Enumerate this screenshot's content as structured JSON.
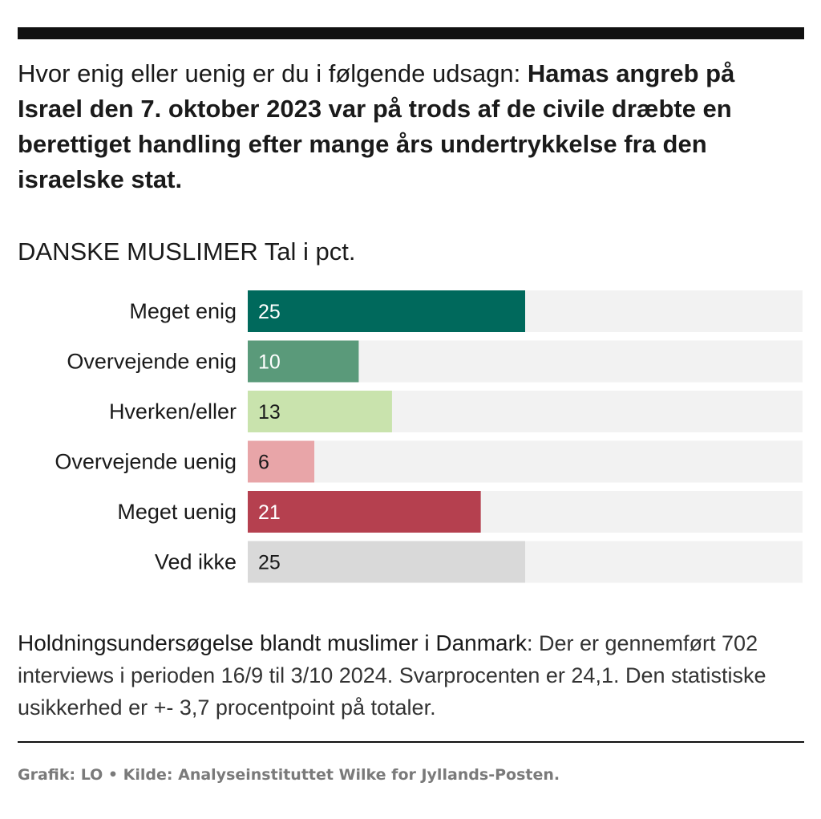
{
  "question": {
    "lead": "Hvor enig eller uenig er du i følgende udsagn: ",
    "statement": "Hamas angreb på Israel den 7. oktober 2023 var på trods af de civile dræbte en berettiget handling efter mange års undertrykkelse fra den israelske stat."
  },
  "subtitle": "DANSKE MUSLIMER Tal i pct.",
  "chart_data": {
    "type": "bar",
    "orientation": "horizontal",
    "title": "",
    "xlabel": "",
    "ylabel": "",
    "xlim": [
      0,
      50
    ],
    "grid": false,
    "categories": [
      "Meget enig",
      "Overvejende enig",
      "Hverken/eller",
      "Overvejende uenig",
      "Meget uenig",
      "Ved ikke"
    ],
    "values": [
      25,
      10,
      13,
      6,
      21,
      25
    ],
    "colors": [
      "#00695c",
      "#5a9a7a",
      "#c9e3ad",
      "#e8a5a8",
      "#b5404f",
      "#d9d9d9"
    ],
    "label_colors": [
      "#ffffff",
      "#ffffff",
      "#1a1a1a",
      "#1a1a1a",
      "#ffffff",
      "#1a1a1a"
    ],
    "track_color": "#f2f2f2"
  },
  "note": {
    "bold": "Holdningsundersøgelse blandt muslimer i Danmark",
    "text": ": Der er gennemført 702 interviews i perioden 16/9 til 3/10 2024. Svarprocenten er 24,1. Den statistiske usikkerhed er +- 3,7 procentpoint på totaler."
  },
  "footer": "Grafik: LO • Kilde: Analyseinstituttet Wilke for Jyllands-Posten."
}
